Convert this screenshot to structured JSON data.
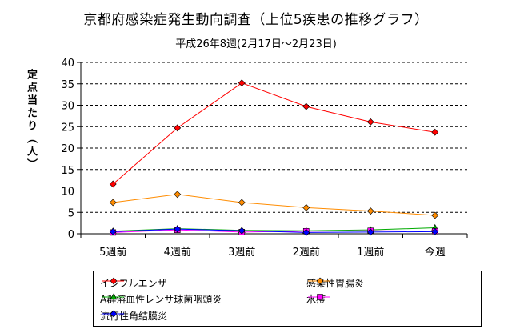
{
  "chart_data": {
    "type": "line",
    "title": "京都府感染症発生動向調査（上位5疾患の推移グラフ）",
    "subtitle": "平成26年8週(2月17日～2月23日)",
    "ylabel": "定点当たり（人）",
    "xlabel": "",
    "ylim": [
      0,
      40
    ],
    "yticks": [
      0,
      5,
      10,
      15,
      20,
      25,
      30,
      35,
      40
    ],
    "grid": true,
    "legend_position": "bottom",
    "categories": [
      "5週前",
      "4週前",
      "3週前",
      "2週前",
      "1週前",
      "今週"
    ],
    "series": [
      {
        "name": "インフルエンザ",
        "color": "#ff0000",
        "marker": "diamond",
        "values": [
          11.6,
          24.7,
          35.2,
          29.7,
          26.1,
          23.7
        ]
      },
      {
        "name": "感染性胃腸炎",
        "color": "#ff8c00",
        "marker": "diamond",
        "values": [
          7.3,
          9.2,
          7.3,
          6.1,
          5.3,
          4.3
        ]
      },
      {
        "name": "A群溶血性レンサ球菌咽頭炎",
        "color": "#00aa00",
        "marker": "triangle",
        "values": [
          0.6,
          1.2,
          0.8,
          0.7,
          0.9,
          1.4
        ]
      },
      {
        "name": "水痘",
        "color": "#ff00ff",
        "marker": "square",
        "values": [
          0.3,
          0.9,
          0.4,
          0.6,
          0.7,
          0.6
        ]
      },
      {
        "name": "流行性角結膜炎",
        "color": "#0000ff",
        "marker": "diamond",
        "values": [
          0.5,
          1.1,
          0.7,
          0.3,
          0.4,
          0.5
        ]
      }
    ]
  }
}
